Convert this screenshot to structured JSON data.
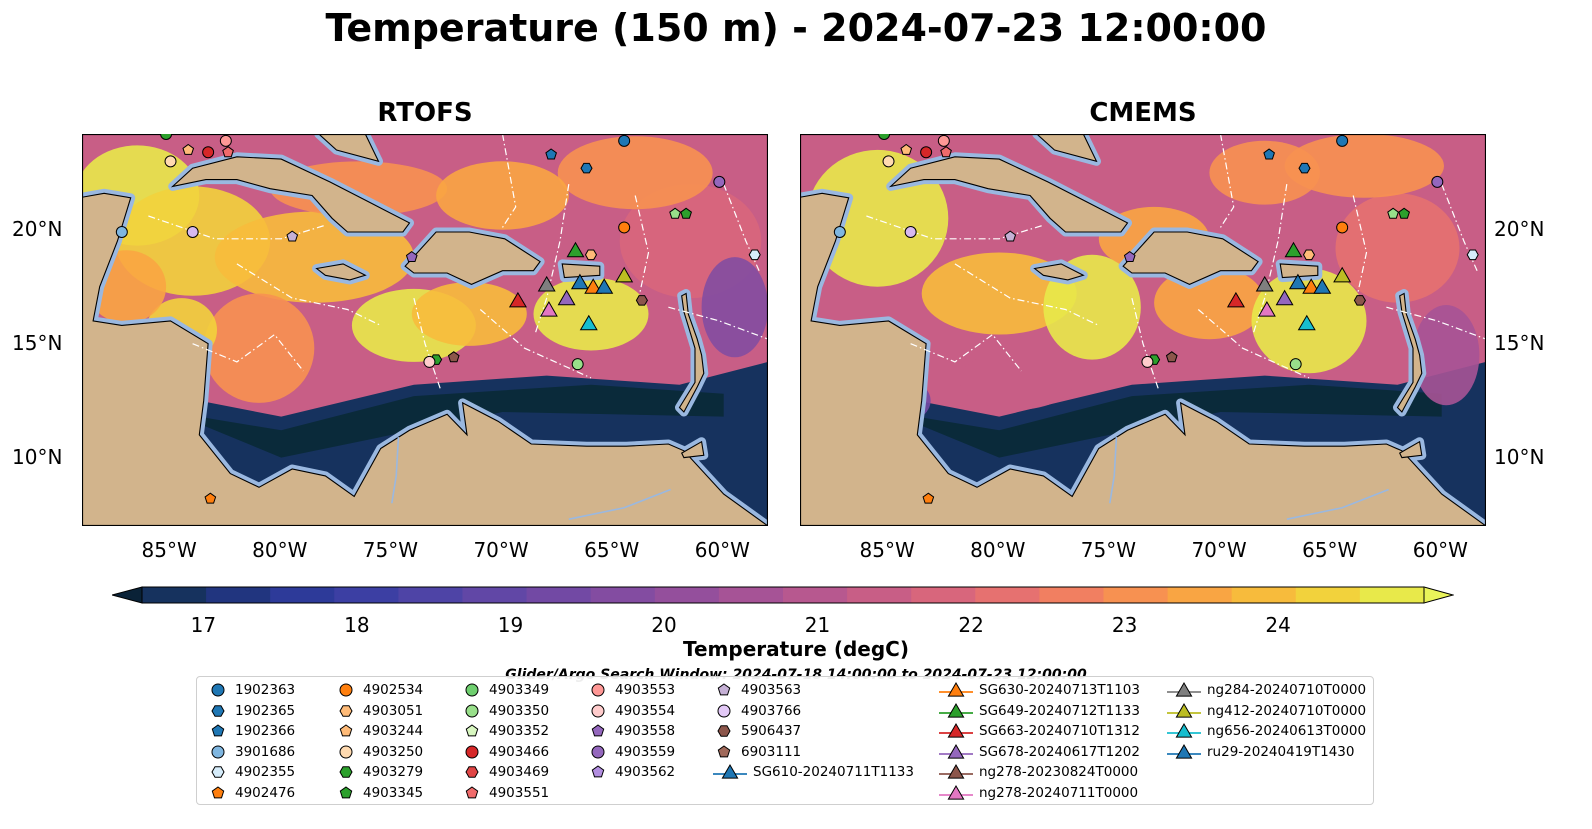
{
  "title": "Temperature (150 m) - 2024-07-23 12:00:00",
  "panels": [
    {
      "title": "RTOFS"
    },
    {
      "title": "CMEMS"
    }
  ],
  "x_tick_labels": [
    "85°W",
    "80°W",
    "75°W",
    "70°W",
    "65°W",
    "60°W"
  ],
  "y_tick_labels": [
    "20°N",
    "15°N",
    "10°N"
  ],
  "colorbar": {
    "label": "Temperature (degC)",
    "ticks": [
      "17",
      "18",
      "19",
      "20",
      "21",
      "22",
      "23",
      "24"
    ],
    "colors": [
      "#0a2a3a",
      "#16325e",
      "#21357f",
      "#2d3a99",
      "#3c3fa3",
      "#4e44a6",
      "#6147a6",
      "#7249a4",
      "#834ca1",
      "#944f9c",
      "#a65396",
      "#b7588f",
      "#c85e86",
      "#d8667c",
      "#e67170",
      "#f17f61",
      "#f79151",
      "#f9a543",
      "#f7bb3c",
      "#f2d23c",
      "#e8e94a"
    ],
    "under_color": "#0a2237",
    "over_color": "#e9f35a"
  },
  "search_window": "Glider/Argo Search Window: 2024-07-18 14:00:00 to 2024-07-23 12:00:00",
  "chart_data": [
    {
      "type": "heatmap",
      "title": "RTOFS",
      "variable": "Temperature (150 m)",
      "units": "degC",
      "xlim": [
        -89,
        -58
      ],
      "ylim": [
        7,
        24.2
      ],
      "clim": [
        17,
        24.5
      ],
      "x_ticks": [
        -85,
        -80,
        -75,
        -70,
        -65,
        -60
      ],
      "y_ticks": [
        20,
        15,
        10
      ]
    },
    {
      "type": "heatmap",
      "title": "CMEMS",
      "variable": "Temperature (150 m)",
      "units": "degC",
      "xlim": [
        -89,
        -58
      ],
      "ylim": [
        7,
        24.2
      ],
      "clim": [
        17,
        24.5
      ],
      "x_ticks": [
        -85,
        -80,
        -75,
        -70,
        -65,
        -60
      ],
      "y_ticks": [
        20,
        15,
        10
      ]
    }
  ],
  "observations": [
    {
      "id": "1902363",
      "marker": "circle",
      "color": "#1f77b4",
      "lon": -64.5,
      "lat": 23.9
    },
    {
      "id": "1902366",
      "marker": "pentagon",
      "color": "#1f77b4",
      "lon": -67.8,
      "lat": 23.3
    },
    {
      "id": "1902365",
      "marker": "hexagon",
      "color": "#1f77b4",
      "lon": -66.2,
      "lat": 22.7
    },
    {
      "id": "4903051",
      "marker": "hexagon",
      "color": "#ffbb78",
      "lon": -66.0,
      "lat": 18.9
    },
    {
      "id": "4903250",
      "marker": "circle",
      "color": "#ffdab0",
      "lon": -85.0,
      "lat": 23.0
    },
    {
      "id": "4903244",
      "marker": "pentagon",
      "color": "#ffbb78",
      "lon": -84.2,
      "lat": 23.5
    },
    {
      "id": "4903466",
      "marker": "circle",
      "color": "#d62728",
      "lon": -83.3,
      "lat": 23.4
    },
    {
      "id": "4903551",
      "marker": "pentagon",
      "color": "#f06b6b",
      "lon": -82.4,
      "lat": 23.4
    },
    {
      "id": "4903553",
      "marker": "circle",
      "color": "#ff9896",
      "lon": -82.5,
      "lat": 23.9
    },
    {
      "id": "4903349",
      "marker": "circle",
      "color": "#2ca02c",
      "lon": -85.2,
      "lat": 24.2
    },
    {
      "id": "4902534",
      "marker": "circle",
      "color": "#ff7f0e",
      "lon": -64.5,
      "lat": 20.1
    },
    {
      "id": "4903345",
      "marker": "pentagon",
      "color": "#2ca02c",
      "lon": -61.7,
      "lat": 20.7
    },
    {
      "id": "4903352",
      "marker": "pentagon",
      "color": "#98df8a",
      "lon": -62.2,
      "lat": 20.7
    },
    {
      "id": "3901686",
      "marker": "circle",
      "color": "#7fb6e0",
      "lon": -87.2,
      "lat": 19.9
    },
    {
      "id": "4903766",
      "marker": "circle",
      "color": "#d7b9f0",
      "lon": -84.0,
      "lat": 19.9
    },
    {
      "id": "4903563",
      "marker": "pentagon",
      "color": "#c5b0d5",
      "lon": -79.5,
      "lat": 19.7
    },
    {
      "id": "4903558",
      "marker": "pentagon",
      "color": "#9467bd",
      "lon": -74.1,
      "lat": 18.8
    },
    {
      "id": "4902355",
      "marker": "hexagon",
      "color": "#d6ecfa",
      "lon": -58.6,
      "lat": 18.9
    },
    {
      "id": "4903559",
      "marker": "circle",
      "color": "#9467bd",
      "lon": -60.2,
      "lat": 22.1
    },
    {
      "id": "5906437",
      "marker": "hexagon",
      "color": "#8c564b",
      "lon": -63.7,
      "lat": 16.9
    },
    {
      "id": "6903111",
      "marker": "pentagon",
      "color": "#8c564b",
      "lon": -72.2,
      "lat": 14.4
    },
    {
      "id": "4903279",
      "marker": "hexagon",
      "color": "#2ca02c",
      "lon": -73.0,
      "lat": 14.3
    },
    {
      "id": "4903554",
      "marker": "circle",
      "color": "#ffcccc",
      "lon": -73.3,
      "lat": 14.2
    },
    {
      "id": "4903350",
      "marker": "circle",
      "color": "#98df8a",
      "lon": -66.6,
      "lat": 14.1
    },
    {
      "id": "4902476",
      "marker": "pentagon",
      "color": "#ff7f0e",
      "lon": -83.2,
      "lat": 8.2
    },
    {
      "id": "SG610-20240711T1133",
      "marker": "triangle",
      "color": "#1f77b4",
      "lon": -66.5,
      "lat": 17.7
    },
    {
      "id": "SG630-20240713T1103",
      "marker": "triangle",
      "color": "#ff7f0e",
      "lon": -65.9,
      "lat": 17.5
    },
    {
      "id": "SG649-20240712T1133",
      "marker": "triangle",
      "color": "#2ca02c",
      "lon": -66.7,
      "lat": 19.1
    },
    {
      "id": "SG663-20240710T1312",
      "marker": "triangle",
      "color": "#d62728",
      "lon": -69.3,
      "lat": 16.9
    },
    {
      "id": "SG678-20240617T1202",
      "marker": "triangle",
      "color": "#9467bd",
      "lon": -67.1,
      "lat": 17.0
    },
    {
      "id": "ng278-20240711T0000",
      "marker": "triangle",
      "color": "#e377c2",
      "lon": -67.9,
      "lat": 16.5
    },
    {
      "id": "ng284-20240710T0000",
      "marker": "triangle",
      "color": "#7f7f7f",
      "lon": -68.0,
      "lat": 17.6
    },
    {
      "id": "ng412-20240710T0000",
      "marker": "triangle",
      "color": "#bcbd22",
      "lon": -64.5,
      "lat": 18.0
    },
    {
      "id": "ng656-20240613T0000",
      "marker": "triangle",
      "color": "#17becf",
      "lon": -66.1,
      "lat": 15.9
    },
    {
      "id": "ru29-20240419T1430",
      "marker": "triangle",
      "color": "#1f77b4",
      "lon": -65.4,
      "lat": 17.5
    }
  ],
  "legend": [
    {
      "label": "1902363",
      "marker": "circle",
      "color": "#1f77b4"
    },
    {
      "label": "1902365",
      "marker": "hexagon",
      "color": "#1f77b4"
    },
    {
      "label": "1902366",
      "marker": "pentagon",
      "color": "#1f77b4"
    },
    {
      "label": "3901686",
      "marker": "circle",
      "color": "#7fb6e0"
    },
    {
      "label": "4902355",
      "marker": "hexagon",
      "color": "#d6ecfa"
    },
    {
      "label": "4902476",
      "marker": "pentagon",
      "color": "#ff7f0e"
    },
    {
      "label": "4902534",
      "marker": "circle",
      "color": "#ff7f0e"
    },
    {
      "label": "4903051",
      "marker": "hexagon",
      "color": "#ffbb78"
    },
    {
      "label": "4903244",
      "marker": "pentagon",
      "color": "#ffbb78"
    },
    {
      "label": "4903250",
      "marker": "circle",
      "color": "#ffdab0"
    },
    {
      "label": "4903279",
      "marker": "hexagon",
      "color": "#2ca02c"
    },
    {
      "label": "4903345",
      "marker": "pentagon",
      "color": "#2ca02c"
    },
    {
      "label": "4903349",
      "marker": "circle",
      "color": "#6fcf6f"
    },
    {
      "label": "4903350",
      "marker": "circle",
      "color": "#98df8a"
    },
    {
      "label": "4903352",
      "marker": "pentagon",
      "color": "#d8f7c0"
    },
    {
      "label": "4903466",
      "marker": "circle",
      "color": "#d62728"
    },
    {
      "label": "4903469",
      "marker": "hexagon",
      "color": "#e04545"
    },
    {
      "label": "4903551",
      "marker": "pentagon",
      "color": "#f06b6b"
    },
    {
      "label": "4903553",
      "marker": "circle",
      "color": "#ff9896"
    },
    {
      "label": "4903554",
      "marker": "circle",
      "color": "#ffcccc"
    },
    {
      "label": "4903558",
      "marker": "pentagon",
      "color": "#9467bd"
    },
    {
      "label": "4903559",
      "marker": "circle",
      "color": "#9467bd"
    },
    {
      "label": "4903562",
      "marker": "pentagon",
      "color": "#b28ee0"
    },
    {
      "label": "4903563",
      "marker": "pentagon",
      "color": "#c5b0d5"
    },
    {
      "label": "4903766",
      "marker": "circle",
      "color": "#e3c9f7"
    },
    {
      "label": "5906437",
      "marker": "hexagon",
      "color": "#8c564b"
    },
    {
      "label": "6903111",
      "marker": "pentagon",
      "color": "#a0695a"
    },
    {
      "label": "SG610-20240711T1133",
      "marker": "triangle-line",
      "color": "#1f77b4"
    },
    {
      "label": "SG630-20240713T1103",
      "marker": "triangle-line",
      "color": "#ff7f0e"
    },
    {
      "label": "SG649-20240712T1133",
      "marker": "triangle-line",
      "color": "#2ca02c"
    },
    {
      "label": "SG663-20240710T1312",
      "marker": "triangle-line",
      "color": "#d62728"
    },
    {
      "label": "SG678-20240617T1202",
      "marker": "triangle-line",
      "color": "#9467bd"
    },
    {
      "label": "ng278-20230824T0000",
      "marker": "triangle-line",
      "color": "#8c564b"
    },
    {
      "label": "ng278-20240711T0000",
      "marker": "triangle-line",
      "color": "#e377c2"
    },
    {
      "label": "ng284-20240710T0000",
      "marker": "triangle-line",
      "color": "#7f7f7f"
    },
    {
      "label": "ng412-20240710T0000",
      "marker": "triangle-line",
      "color": "#bcbd22"
    },
    {
      "label": "ng656-20240613T0000",
      "marker": "triangle-line",
      "color": "#17becf"
    },
    {
      "label": "ru29-20240419T1430",
      "marker": "triangle-line",
      "color": "#1f77b4"
    }
  ]
}
